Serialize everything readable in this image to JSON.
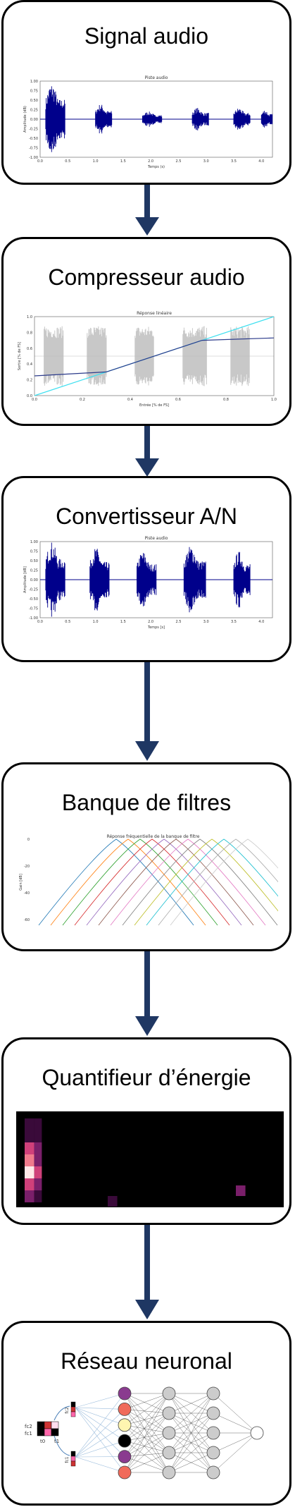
{
  "stages": [
    {
      "title": "Signal audio"
    },
    {
      "title": "Compresseur audio"
    },
    {
      "title": "Convertisseur A/N"
    },
    {
      "title": "Banque de filtres"
    },
    {
      "title": "Quantifieur d’énergie"
    },
    {
      "title": "Réseau neuronal"
    }
  ],
  "colors": {
    "stroke": "#000000",
    "arrow": "#1f3763",
    "waveform": "#00008b",
    "gray_wave": "#c8c8c8",
    "line_cyan": "#40e0f0"
  },
  "chart_data": [
    {
      "type": "line",
      "title": "Piste audio",
      "ylabel": "Amplitude (dB)",
      "xlabel": "Temps (s)",
      "xlim": [
        0,
        4.2
      ],
      "ylim": [
        -1.0,
        1.0
      ],
      "x_ticks": [
        "0.0",
        "0.5",
        "1.0",
        "1.5",
        "2.0",
        "2.5",
        "3.0",
        "3.5",
        "4.0"
      ],
      "y_ticks": [
        "1.00",
        "0.75",
        "0.50",
        "0.25",
        "0.00",
        "-0.25",
        "-0.50",
        "-0.75",
        "-1.00"
      ],
      "bursts": [
        {
          "start": 0.1,
          "end": 0.45,
          "amp": 0.95
        },
        {
          "start": 1.0,
          "end": 1.3,
          "amp": 0.4
        },
        {
          "start": 1.85,
          "end": 2.2,
          "amp": 0.2
        },
        {
          "start": 2.75,
          "end": 3.05,
          "amp": 0.3
        },
        {
          "start": 3.5,
          "end": 3.8,
          "amp": 0.3
        },
        {
          "start": 4.0,
          "end": 4.3,
          "amp": 0.25
        }
      ]
    },
    {
      "type": "line",
      "title": "Réponse linéaire",
      "ylabel": "Sortie [% de FS]",
      "xlabel": "Entrée [% de FS]",
      "xlim": [
        0,
        1.0
      ],
      "ylim": [
        0,
        1.0
      ],
      "x_ticks": [
        "0.0",
        "0.2",
        "0.4",
        "0.6",
        "0.8",
        "1.0"
      ],
      "y_ticks": [
        "1.0",
        "0.8",
        "0.6",
        "0.4",
        "0.2",
        "0.0"
      ],
      "series": [
        {
          "x": [
            0,
            1.0
          ],
          "y": [
            0,
            1.0
          ]
        },
        {
          "x": [
            0,
            0.3,
            0.7,
            1.0
          ],
          "y": [
            0.25,
            0.3,
            0.7,
            0.73
          ]
        }
      ]
    },
    {
      "type": "line",
      "title": "Piste audio",
      "ylabel": "Amplitude [dB]",
      "xlabel": "Temps [s]",
      "xlim": [
        0,
        4.2
      ],
      "ylim": [
        -1.0,
        1.0
      ],
      "x_ticks": [
        "0.0",
        "0.5",
        "1.0",
        "1.5",
        "2.0",
        "2.5",
        "3.0",
        "3.5",
        "4.0"
      ],
      "y_ticks": [
        "1.00",
        "0.75",
        "0.50",
        "0.25",
        "0.00",
        "-0.25",
        "-0.50",
        "-0.75",
        "-1.00"
      ],
      "bursts": [
        {
          "start": 0.1,
          "end": 0.45,
          "amp": 1.0
        },
        {
          "start": 0.9,
          "end": 1.25,
          "amp": 0.85
        },
        {
          "start": 1.75,
          "end": 2.1,
          "amp": 0.75
        },
        {
          "start": 2.6,
          "end": 3.0,
          "amp": 0.9
        },
        {
          "start": 3.5,
          "end": 3.8,
          "amp": 0.75
        }
      ]
    },
    {
      "type": "line",
      "title": "Réponse fréquentielle de la banque de filtre",
      "ylabel": "Gain [dB]",
      "y_ticks": [
        "0",
        "-20",
        "-40",
        "-60"
      ],
      "filter_count": 12
    }
  ],
  "energy_map": {
    "columns": 14,
    "rows": 9,
    "hot_column": [
      0.15,
      0.3,
      0.55,
      0.8,
      1.0,
      0.7,
      0.4
    ],
    "low_spots": [
      {
        "col": 5,
        "row": 8,
        "val": 0.3
      },
      {
        "col": 12,
        "row": 7,
        "val": 0.45
      }
    ]
  },
  "network": {
    "input_labels": [
      "fc2",
      "fc1",
      "t0",
      "t1"
    ],
    "axis_labels": [
      "fc2",
      "fc1"
    ],
    "layers": [
      6,
      5,
      5,
      1
    ],
    "node_colors": [
      "#8a3b8f",
      "#f06a5a",
      "#fff5b0",
      "#000000",
      "#8a3b8f",
      "#f06a5a"
    ]
  }
}
